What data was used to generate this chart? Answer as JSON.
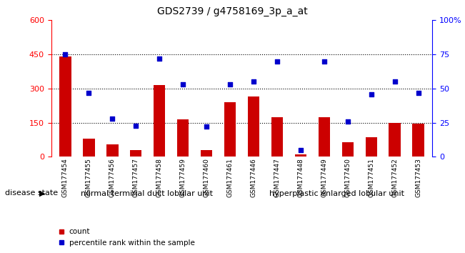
{
  "title": "GDS2739 / g4758169_3p_a_at",
  "samples": [
    "GSM177454",
    "GSM177455",
    "GSM177456",
    "GSM177457",
    "GSM177458",
    "GSM177459",
    "GSM177460",
    "GSM177461",
    "GSM177446",
    "GSM177447",
    "GSM177448",
    "GSM177449",
    "GSM177450",
    "GSM177451",
    "GSM177452",
    "GSM177453"
  ],
  "counts": [
    440,
    80,
    55,
    30,
    315,
    165,
    30,
    240,
    265,
    175,
    10,
    175,
    65,
    85,
    150,
    145
  ],
  "percentiles": [
    75,
    47,
    28,
    23,
    72,
    53,
    22,
    53,
    55,
    70,
    5,
    70,
    26,
    46,
    55,
    47
  ],
  "group1_label": "normal terminal duct lobular unit",
  "group1_count": 8,
  "group2_label": "hyperplastic enlarged lobular unit",
  "group2_count": 8,
  "disease_state_label": "disease state",
  "bar_color": "#cc0000",
  "scatter_color": "#0000cc",
  "left_ylim": [
    0,
    600
  ],
  "left_yticks": [
    0,
    150,
    300,
    450,
    600
  ],
  "right_yticklabels": [
    "0",
    "25",
    "50",
    "75",
    "100%"
  ],
  "grid_lines": [
    150,
    300,
    450
  ],
  "group_bg_color": "#99ee99",
  "xlabel_bg_color": "#cccccc"
}
